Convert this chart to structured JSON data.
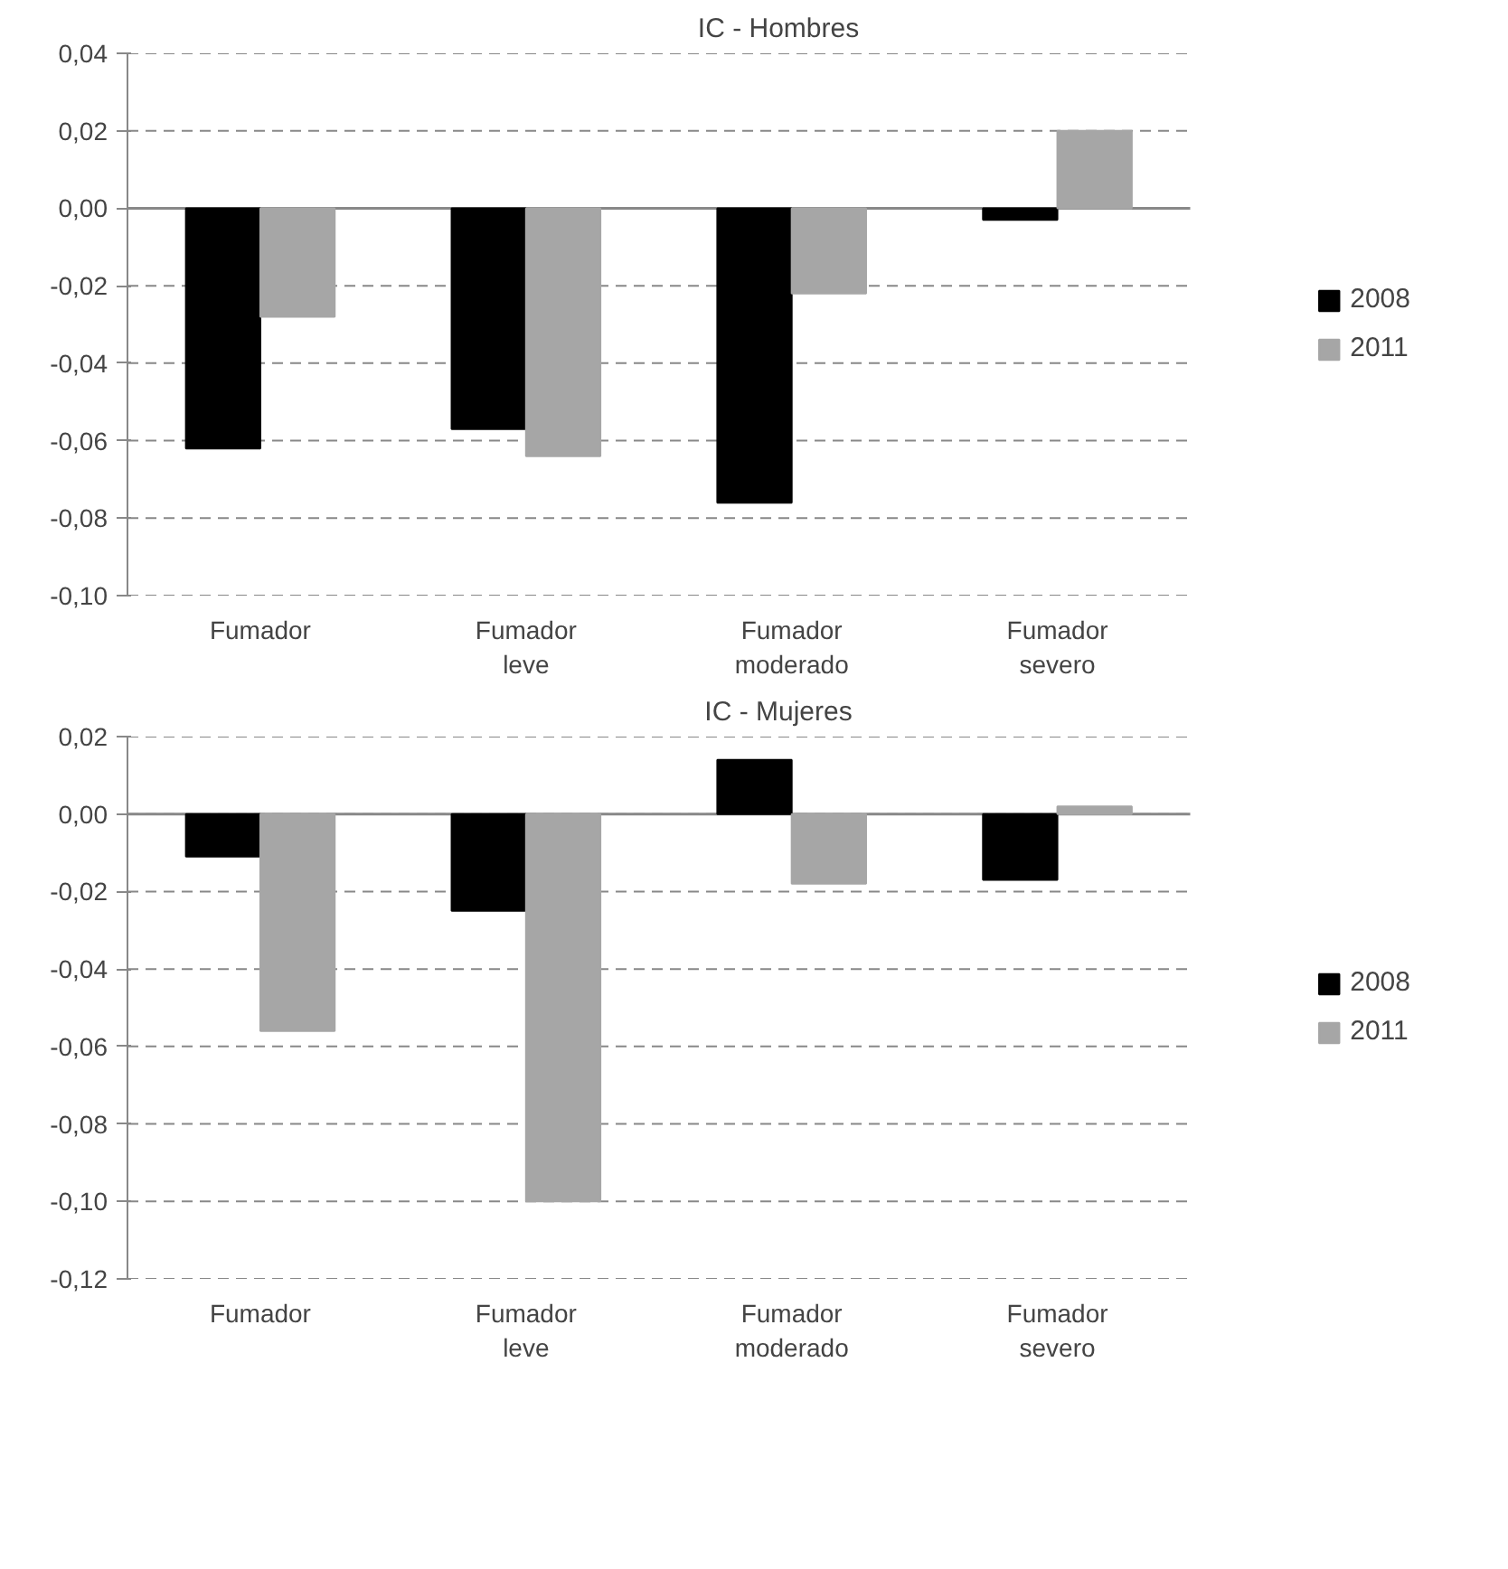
{
  "chart_data": [
    {
      "type": "bar",
      "title": "IC - Hombres",
      "categories": [
        "Fumador",
        "Fumador\nleve",
        "Fumador\nmoderado",
        "Fumador\nsevero"
      ],
      "series": [
        {
          "name": "2008",
          "color": "#000000",
          "values": [
            -0.062,
            -0.057,
            -0.076,
            -0.003
          ]
        },
        {
          "name": "2011",
          "color": "#a6a6a6",
          "values": [
            -0.028,
            -0.064,
            -0.022,
            0.02
          ]
        }
      ],
      "ylim": [
        -0.1,
        0.04
      ],
      "yticks": [
        {
          "value": -0.1,
          "label": "-0,10"
        },
        {
          "value": -0.08,
          "label": "-0,08"
        },
        {
          "value": -0.06,
          "label": "-0,06"
        },
        {
          "value": -0.04,
          "label": "-0,04"
        },
        {
          "value": -0.02,
          "label": "-0,02"
        },
        {
          "value": 0,
          "label": "0,00"
        },
        {
          "value": 0.02,
          "label": "0,02"
        },
        {
          "value": 0.04,
          "label": "0,04"
        }
      ],
      "grid": "y",
      "legend": "right"
    },
    {
      "type": "bar",
      "title": "IC - Mujeres",
      "categories": [
        "Fumador",
        "Fumador\nleve",
        "Fumador\nmoderado",
        "Fumador\nsevero"
      ],
      "series": [
        {
          "name": "2008",
          "color": "#000000",
          "values": [
            -0.011,
            -0.025,
            0.014,
            -0.017
          ]
        },
        {
          "name": "2011",
          "color": "#a6a6a6",
          "values": [
            -0.056,
            -0.1,
            -0.018,
            0.002
          ]
        }
      ],
      "ylim": [
        -0.12,
        0.02
      ],
      "yticks": [
        {
          "value": -0.12,
          "label": "-0,12"
        },
        {
          "value": -0.1,
          "label": "-0,10"
        },
        {
          "value": -0.08,
          "label": "-0,08"
        },
        {
          "value": -0.06,
          "label": "-0,06"
        },
        {
          "value": -0.04,
          "label": "-0,04"
        },
        {
          "value": -0.02,
          "label": "-0,02"
        },
        {
          "value": 0,
          "label": "0,00"
        },
        {
          "value": 0.02,
          "label": "0,02"
        }
      ],
      "grid": "y",
      "legend": "right"
    }
  ]
}
